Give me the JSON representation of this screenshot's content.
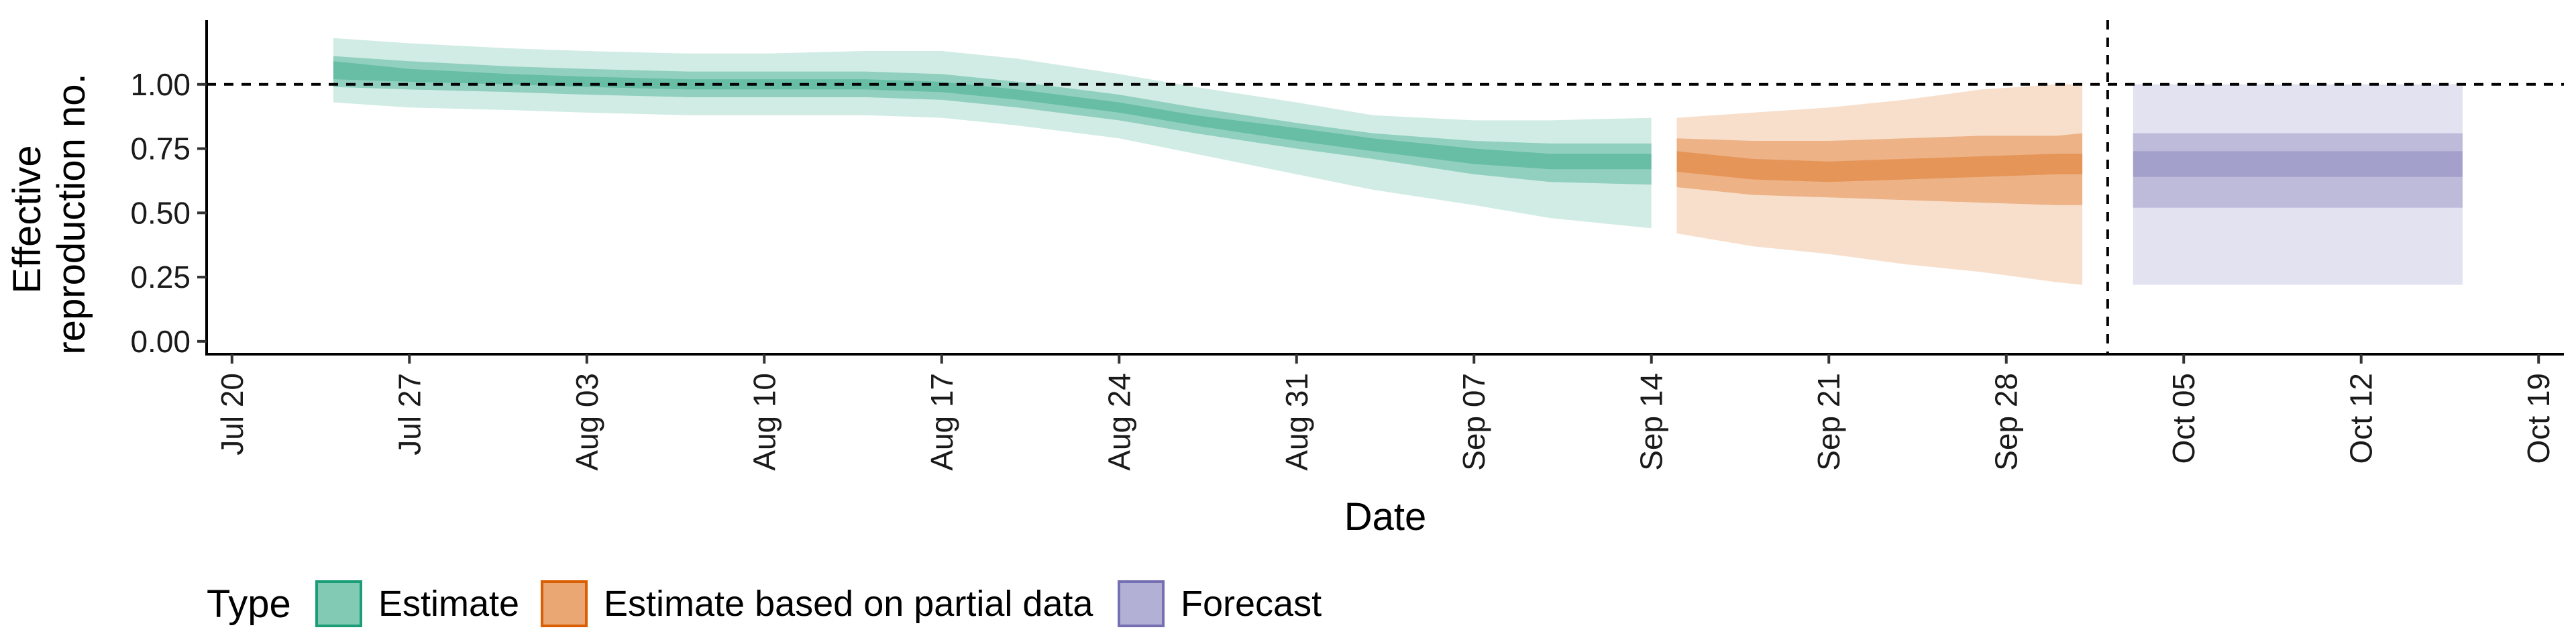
{
  "chart_data": {
    "type": "area",
    "xlabel": "Date",
    "ylabel_lines": [
      "Effective",
      "reproduction no."
    ],
    "x_ticks": [
      "Jul 20",
      "Jul 27",
      "Aug 03",
      "Aug 10",
      "Aug 17",
      "Aug 24",
      "Aug 31",
      "Sep 07",
      "Sep 14",
      "Sep 21",
      "Sep 28",
      "Oct 05",
      "Oct 12",
      "Oct 19"
    ],
    "x_tick_dates": [
      "2020-07-20",
      "2020-07-27",
      "2020-08-03",
      "2020-08-10",
      "2020-08-17",
      "2020-08-24",
      "2020-08-31",
      "2020-09-07",
      "2020-09-14",
      "2020-09-21",
      "2020-09-28",
      "2020-10-05",
      "2020-10-12",
      "2020-10-19"
    ],
    "xlim": [
      "2020-07-19",
      "2020-10-20"
    ],
    "y_ticks": [
      "0.00",
      "0.25",
      "0.50",
      "0.75",
      "1.00"
    ],
    "ylim": [
      -0.05,
      1.25
    ],
    "reference_line_y": 1.0,
    "forecast_date_line": "2020-10-02",
    "grid": false,
    "legend": {
      "title": "Type",
      "position": "bottom",
      "items": [
        "Estimate",
        "Estimate based on partial data",
        "Forecast"
      ]
    },
    "series": [
      {
        "name": "Estimate",
        "color": "#1b9e77",
        "points": [
          {
            "x": "2020-07-24",
            "median": 1.05,
            "lo20": 1.02,
            "hi20": 1.09,
            "lo50": 0.99,
            "hi50": 1.11,
            "lo90": 0.93,
            "hi90": 1.18
          },
          {
            "x": "2020-07-27",
            "median": 1.03,
            "lo20": 1.01,
            "hi20": 1.06,
            "lo50": 0.98,
            "hi50": 1.09,
            "lo90": 0.91,
            "hi90": 1.16
          },
          {
            "x": "2020-07-31",
            "median": 1.02,
            "lo20": 1.0,
            "hi20": 1.04,
            "lo50": 0.97,
            "hi50": 1.07,
            "lo90": 0.9,
            "hi90": 1.14
          },
          {
            "x": "2020-08-03",
            "median": 1.01,
            "lo20": 0.99,
            "hi20": 1.03,
            "lo50": 0.96,
            "hi50": 1.06,
            "lo90": 0.89,
            "hi90": 1.13
          },
          {
            "x": "2020-08-07",
            "median": 1.0,
            "lo20": 0.98,
            "hi20": 1.02,
            "lo50": 0.95,
            "hi50": 1.05,
            "lo90": 0.88,
            "hi90": 1.12
          },
          {
            "x": "2020-08-10",
            "median": 1.0,
            "lo20": 0.98,
            "hi20": 1.02,
            "lo50": 0.95,
            "hi50": 1.05,
            "lo90": 0.88,
            "hi90": 1.12
          },
          {
            "x": "2020-08-14",
            "median": 1.0,
            "lo20": 0.98,
            "hi20": 1.02,
            "lo50": 0.95,
            "hi50": 1.05,
            "lo90": 0.88,
            "hi90": 1.13
          },
          {
            "x": "2020-08-17",
            "median": 0.99,
            "lo20": 0.97,
            "hi20": 1.01,
            "lo50": 0.94,
            "hi50": 1.04,
            "lo90": 0.87,
            "hi90": 1.13
          },
          {
            "x": "2020-08-20",
            "median": 0.96,
            "lo20": 0.94,
            "hi20": 0.98,
            "lo50": 0.91,
            "hi50": 1.01,
            "lo90": 0.84,
            "hi90": 1.1
          },
          {
            "x": "2020-08-24",
            "median": 0.91,
            "lo20": 0.89,
            "hi20": 0.93,
            "lo50": 0.86,
            "hi50": 0.96,
            "lo90": 0.79,
            "hi90": 1.04
          },
          {
            "x": "2020-08-27",
            "median": 0.86,
            "lo20": 0.84,
            "hi20": 0.88,
            "lo50": 0.81,
            "hi50": 0.91,
            "lo90": 0.73,
            "hi90": 0.99
          },
          {
            "x": "2020-08-31",
            "median": 0.8,
            "lo20": 0.78,
            "hi20": 0.83,
            "lo50": 0.75,
            "hi50": 0.85,
            "lo90": 0.65,
            "hi90": 0.93
          },
          {
            "x": "2020-09-03",
            "median": 0.76,
            "lo20": 0.74,
            "hi20": 0.79,
            "lo50": 0.71,
            "hi50": 0.81,
            "lo90": 0.59,
            "hi90": 0.88
          },
          {
            "x": "2020-09-07",
            "median": 0.72,
            "lo20": 0.69,
            "hi20": 0.75,
            "lo50": 0.65,
            "hi50": 0.78,
            "lo90": 0.53,
            "hi90": 0.86
          },
          {
            "x": "2020-09-10",
            "median": 0.7,
            "lo20": 0.67,
            "hi20": 0.73,
            "lo50": 0.62,
            "hi50": 0.77,
            "lo90": 0.48,
            "hi90": 0.86
          },
          {
            "x": "2020-09-14",
            "median": 0.7,
            "lo20": 0.67,
            "hi20": 0.73,
            "lo50": 0.61,
            "hi50": 0.77,
            "lo90": 0.44,
            "hi90": 0.87
          }
        ]
      },
      {
        "name": "Estimate based on partial data",
        "color": "#d95f02",
        "points": [
          {
            "x": "2020-09-15",
            "median": 0.7,
            "lo20": 0.66,
            "hi20": 0.74,
            "lo50": 0.6,
            "hi50": 0.79,
            "lo90": 0.42,
            "hi90": 0.87
          },
          {
            "x": "2020-09-18",
            "median": 0.67,
            "lo20": 0.63,
            "hi20": 0.71,
            "lo50": 0.57,
            "hi50": 0.78,
            "lo90": 0.37,
            "hi90": 0.89
          },
          {
            "x": "2020-09-21",
            "median": 0.66,
            "lo20": 0.62,
            "hi20": 0.7,
            "lo50": 0.56,
            "hi50": 0.78,
            "lo90": 0.34,
            "hi90": 0.91
          },
          {
            "x": "2020-09-24",
            "median": 0.67,
            "lo20": 0.63,
            "hi20": 0.71,
            "lo50": 0.55,
            "hi50": 0.79,
            "lo90": 0.3,
            "hi90": 0.94
          },
          {
            "x": "2020-09-27",
            "median": 0.68,
            "lo20": 0.64,
            "hi20": 0.72,
            "lo50": 0.54,
            "hi50": 0.8,
            "lo90": 0.27,
            "hi90": 0.98
          },
          {
            "x": "2020-09-30",
            "median": 0.69,
            "lo20": 0.65,
            "hi20": 0.73,
            "lo50": 0.53,
            "hi50": 0.8,
            "lo90": 0.23,
            "hi90": 1.0
          },
          {
            "x": "2020-10-01",
            "median": 0.69,
            "lo20": 0.65,
            "hi20": 0.73,
            "lo50": 0.53,
            "hi50": 0.81,
            "lo90": 0.22,
            "hi90": 1.0
          }
        ]
      },
      {
        "name": "Forecast",
        "color": "#7570b3",
        "points": [
          {
            "x": "2020-10-03",
            "median": 0.69,
            "lo20": 0.64,
            "hi20": 0.74,
            "lo50": 0.52,
            "hi50": 0.81,
            "lo90": 0.22,
            "hi90": 1.0
          },
          {
            "x": "2020-10-16",
            "median": 0.69,
            "lo20": 0.64,
            "hi20": 0.74,
            "lo50": 0.52,
            "hi50": 0.81,
            "lo90": 0.22,
            "hi90": 1.0
          }
        ]
      }
    ]
  }
}
